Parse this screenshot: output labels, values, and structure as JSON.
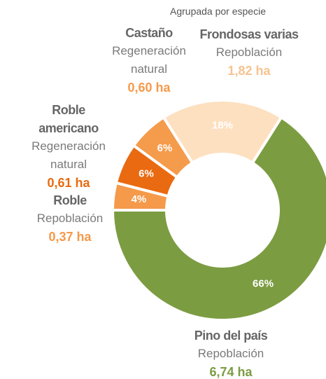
{
  "chart_data": {
    "type": "donut",
    "subtitle": "Agrupada por especie",
    "categories": [
      "Pino del país",
      "Roble",
      "Roble americano",
      "Castaño",
      "Frondosas varias"
    ],
    "sublabels": [
      "Repoblación",
      "Repoblación",
      "Regeneración natural",
      "Regeneración natural",
      "Repoblación"
    ],
    "area_labels": [
      "6,74 ha",
      "0,37 ha",
      "0,61 ha",
      "0,60 ha",
      "1,82 ha"
    ],
    "values": [
      66,
      4,
      6,
      6,
      18
    ],
    "value_labels": [
      "66%",
      "4%",
      "6%",
      "6%",
      "18%"
    ],
    "colors": [
      "#7c9c42",
      "#f5994a",
      "#e96a10",
      "#f59b4c",
      "#fde0c0"
    ]
  }
}
